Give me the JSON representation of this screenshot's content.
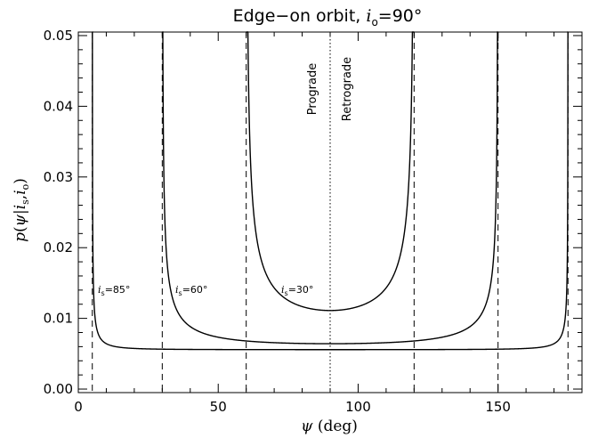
{
  "chart_data": {
    "type": "line",
    "title": "Edge−on orbit, ",
    "title_math": {
      "symbol": "i",
      "subscript": "o",
      "equals": "=90°"
    },
    "xlabel": {
      "symbol": "ψ",
      "unit": " (deg)"
    },
    "ylabel": {
      "func": "p",
      "open": "(",
      "psi": "ψ",
      "bar": "|",
      "i1": "i",
      "sub1": "s",
      "comma": ",",
      "i2": "i",
      "sub2": "o",
      "close": ")"
    },
    "xlim": [
      0,
      180
    ],
    "ylim": [
      -0.0005,
      0.0505
    ],
    "xticks": [
      0,
      50,
      100,
      150
    ],
    "xtick_labels": [
      "0",
      "50",
      "100",
      "150"
    ],
    "yticks": [
      0.0,
      0.01,
      0.02,
      0.03,
      0.04,
      0.05
    ],
    "ytick_labels": [
      "0.00",
      "0.01",
      "0.02",
      "0.03",
      "0.04",
      "0.05"
    ],
    "grid": false,
    "dotted_vline": 90,
    "region_labels": {
      "left": "Prograde",
      "right": "Retrograde"
    },
    "series": [
      {
        "is_label": "i",
        "is_sub": "s",
        "is_value": "=85°",
        "is_deg": 85,
        "asymptotes": [
          5,
          175
        ],
        "min_value": 0.0055
      },
      {
        "is_label": "i",
        "is_sub": "s",
        "is_value": "=60°",
        "is_deg": 60,
        "asymptotes": [
          30,
          150
        ],
        "min_value": 0.0064
      },
      {
        "is_label": "i",
        "is_sub": "s",
        "is_value": "=30°",
        "is_deg": 30,
        "asymptotes": [
          60,
          120
        ],
        "min_value": 0.0111
      }
    ]
  }
}
